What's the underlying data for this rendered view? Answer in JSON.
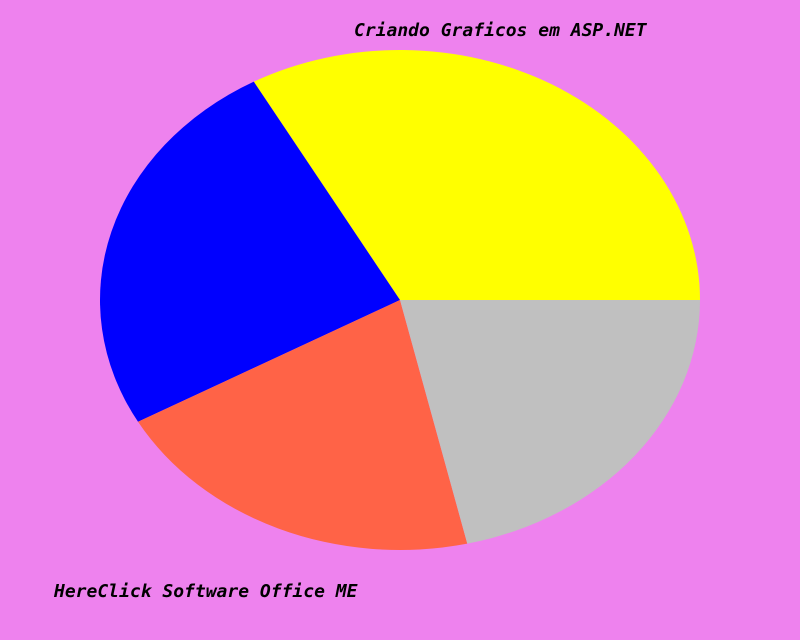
{
  "colors": {
    "background": "#EE82EE"
  },
  "chart_data": {
    "type": "pie",
    "title": "Criando Graficos em ASP.NET",
    "footer": "HereClick Software Office ME",
    "slices": [
      {
        "value": 33.1,
        "color": "#FFFF00"
      },
      {
        "value": 25.0,
        "color": "#0000FF"
      },
      {
        "value": 20.5,
        "color": "#FF6347"
      },
      {
        "value": 21.4,
        "color": "#C0C0C0"
      }
    ]
  }
}
